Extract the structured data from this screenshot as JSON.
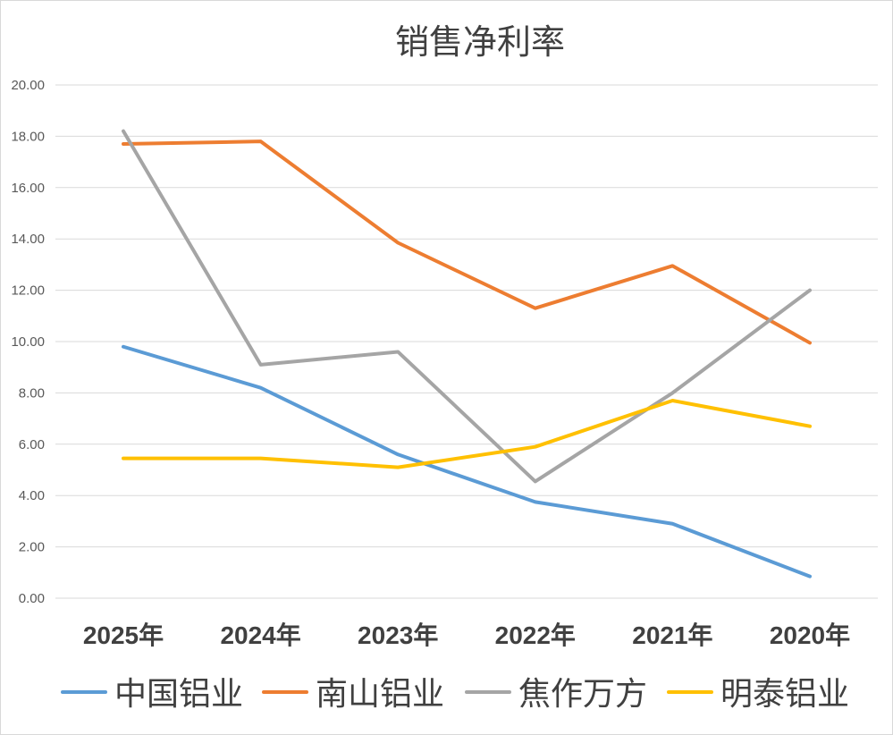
{
  "chart_data": {
    "type": "line",
    "title": "销售净利率",
    "xlabel": "",
    "ylabel": "",
    "categories": [
      "2025年",
      "2024年",
      "2023年",
      "2022年",
      "2021年",
      "2020年"
    ],
    "ylim": [
      0,
      20
    ],
    "yticks": [
      "0.00",
      "2.00",
      "4.00",
      "6.00",
      "8.00",
      "10.00",
      "12.00",
      "14.00",
      "16.00",
      "18.00",
      "20.00"
    ],
    "grid": true,
    "legend_position": "bottom",
    "series": [
      {
        "name": "中国铝业",
        "color": "#5b9bd5",
        "values": [
          9.8,
          8.2,
          5.6,
          3.75,
          2.9,
          0.85
        ]
      },
      {
        "name": "南山铝业",
        "color": "#ed7d31",
        "values": [
          17.7,
          17.8,
          13.85,
          11.3,
          12.95,
          9.95
        ]
      },
      {
        "name": "焦作万方",
        "color": "#a5a5a5",
        "values": [
          18.2,
          9.1,
          9.6,
          4.55,
          8.0,
          12.0
        ]
      },
      {
        "name": "明泰铝业",
        "color": "#ffc000",
        "values": [
          5.45,
          5.45,
          5.1,
          5.9,
          7.7,
          6.7
        ]
      }
    ]
  }
}
